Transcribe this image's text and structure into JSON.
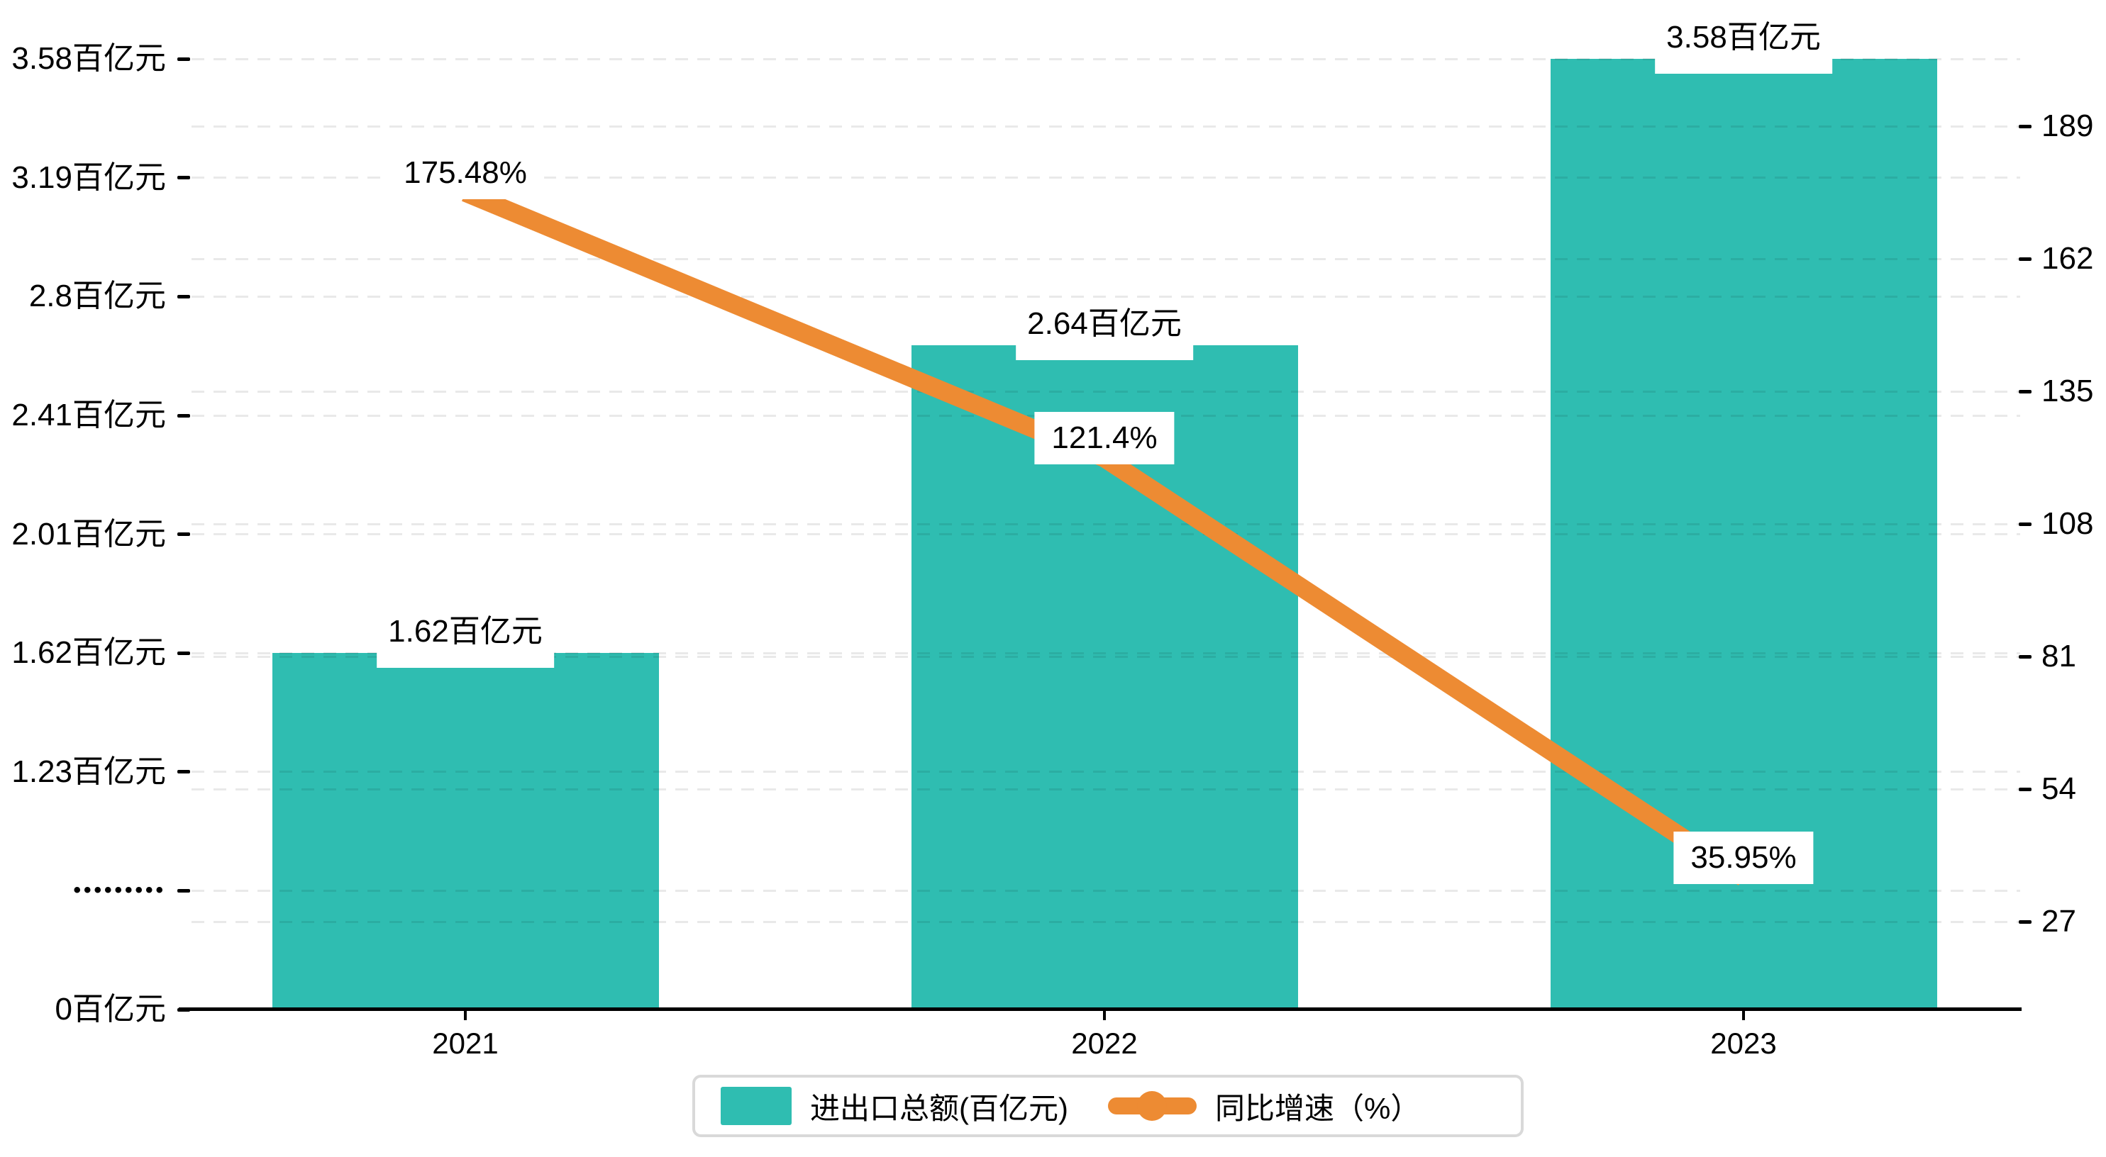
{
  "chart_data": {
    "type": "bar",
    "subtype": "bar_line_combo",
    "categories": [
      "2021",
      "2022",
      "2023"
    ],
    "series": [
      {
        "name": "进出口总额(百亿元)",
        "type": "bar",
        "axis": "left",
        "unit": "百亿元",
        "values": [
          1.62,
          2.64,
          3.58
        ],
        "labels": [
          "1.62百亿元",
          "2.64百亿元",
          "3.58百亿元"
        ],
        "color": "#2FBDB1"
      },
      {
        "name": "同比增速（%）",
        "type": "line",
        "axis": "right",
        "unit": "%",
        "values": [
          175.48,
          121.4,
          35.95
        ],
        "labels": [
          "175.48%",
          "121.4%",
          "35.95%"
        ],
        "color": "#ED8B33"
      }
    ],
    "left_axis": {
      "axis_break": true,
      "ticks": [
        {
          "label": "0百亿元",
          "value": 0
        },
        {
          "label": "•••••••••",
          "value": null
        },
        {
          "label": "1.23百亿元",
          "value": 1.23
        },
        {
          "label": "1.62百亿元",
          "value": 1.62
        },
        {
          "label": "2.01百亿元",
          "value": 2.01
        },
        {
          "label": "2.41百亿元",
          "value": 2.41
        },
        {
          "label": "2.8百亿元",
          "value": 2.8
        },
        {
          "label": "3.19百亿元",
          "value": 3.19
        },
        {
          "label": "3.58百亿元",
          "value": 3.58
        }
      ]
    },
    "right_axis": {
      "max": 189,
      "min": 27,
      "step": 27,
      "ticks": [
        189,
        162,
        135,
        108,
        81,
        54,
        27
      ]
    },
    "grid": "dashed horizontal, both axes",
    "legend_position": "bottom"
  },
  "legend": {
    "items": [
      {
        "label": "进出口总额(百亿元)",
        "marker": "bar-swatch"
      },
      {
        "label": "同比增速（%）",
        "marker": "line-dot"
      }
    ]
  },
  "colors": {
    "bar": "#2FBDB1",
    "line": "#ED8B33",
    "grid": "#e9e9e9",
    "axis": "#000000",
    "label_bg": "#ffffff",
    "legend_border": "#d9d9d9"
  }
}
